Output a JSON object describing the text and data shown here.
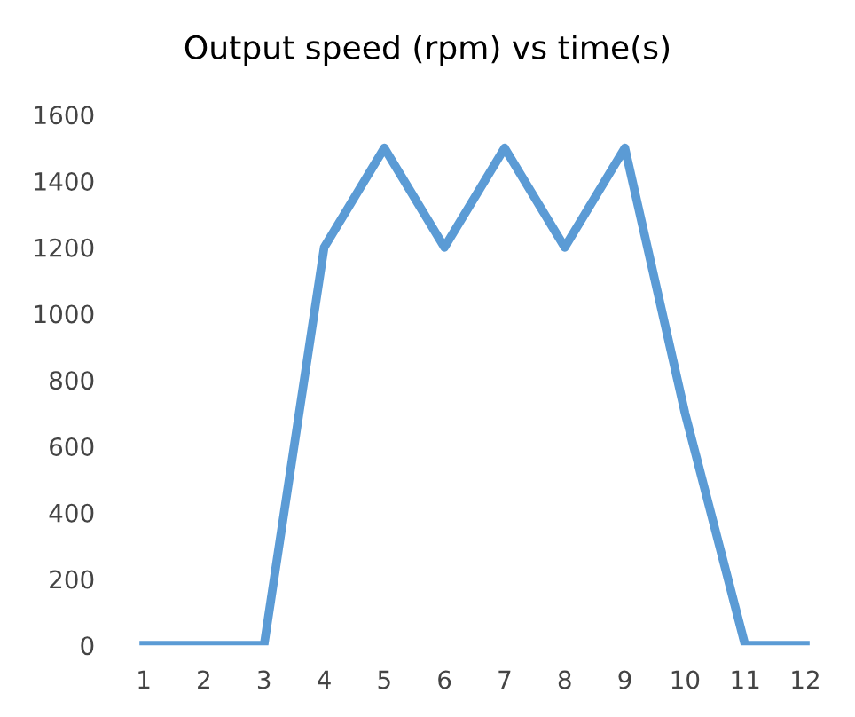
{
  "chart_data": {
    "type": "line",
    "title": "Output speed (rpm) vs time(s)",
    "categories": [
      "1",
      "2",
      "3",
      "4",
      "5",
      "6",
      "7",
      "8",
      "9",
      "10",
      "11",
      "12"
    ],
    "series": [
      {
        "color": "#5b9bd5",
        "values": [
          0,
          0,
          0,
          1200,
          1500,
          1200,
          1500,
          1200,
          1500,
          700,
          0,
          0
        ]
      }
    ],
    "ylim": [
      0,
      1600
    ],
    "yticks": [
      0,
      200,
      400,
      600,
      800,
      1000,
      1200,
      1400,
      1600
    ],
    "grid": false,
    "legend": false,
    "marker": "none",
    "line_style": "solid"
  }
}
